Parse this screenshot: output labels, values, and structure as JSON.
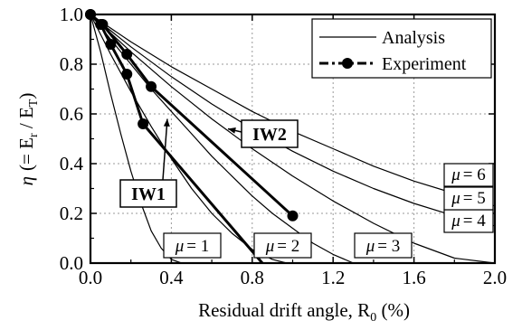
{
  "chart_data": {
    "type": "line",
    "xlabel": "Residual drift angle, R",
    "xlabel_sub": "0",
    "xlabel_unit": " (%)",
    "ylabel_eta": "η",
    "ylabel_open": "(= E",
    "ylabel_sub_r": "r",
    "ylabel_slash": " / E",
    "ylabel_sub_t": "T",
    "ylabel_close": ")",
    "xlim": [
      0.0,
      2.0
    ],
    "ylim": [
      0.0,
      1.0
    ],
    "x_ticks": [
      "0.0",
      "0.4",
      "0.8",
      "1.2",
      "1.6",
      "2.0"
    ],
    "y_ticks": [
      "0.0",
      "0.2",
      "0.4",
      "0.6",
      "0.8",
      "1.0"
    ],
    "grid": true,
    "legend": {
      "position": "top-right",
      "entries": [
        {
          "label": "Analysis",
          "style": "thin-line"
        },
        {
          "label": "Experiment",
          "style": "dash-dot-marker"
        }
      ]
    },
    "analysis_curves": [
      {
        "label": "μ = 1",
        "mu_symbol": "μ",
        "mu_value": "= 1",
        "x": [
          0.0,
          0.05,
          0.1,
          0.15,
          0.2,
          0.25,
          0.3,
          0.35,
          0.4,
          0.45
        ],
        "y": [
          1.0,
          0.85,
          0.68,
          0.52,
          0.37,
          0.24,
          0.13,
          0.06,
          0.015,
          0.0
        ]
      },
      {
        "label": "μ = 2",
        "mu_symbol": "μ",
        "mu_value": "= 2",
        "x": [
          0.0,
          0.1,
          0.2,
          0.3,
          0.4,
          0.5,
          0.6,
          0.7,
          0.8,
          0.9,
          0.97
        ],
        "y": [
          1.0,
          0.84,
          0.69,
          0.55,
          0.42,
          0.3,
          0.2,
          0.12,
          0.055,
          0.015,
          0.0
        ]
      },
      {
        "label": "μ = 3",
        "mu_symbol": "μ",
        "mu_value": "= 3",
        "x": [
          0.0,
          0.1,
          0.2,
          0.3,
          0.4,
          0.5,
          0.6,
          0.7,
          0.8,
          0.9,
          1.0,
          1.1,
          1.2,
          1.3
        ],
        "y": [
          1.0,
          0.9,
          0.8,
          0.7,
          0.61,
          0.52,
          0.43,
          0.35,
          0.27,
          0.2,
          0.14,
          0.08,
          0.035,
          0.0
        ]
      },
      {
        "label": "μ = 4",
        "mu_symbol": "μ",
        "mu_value": "= 4",
        "x": [
          0.0,
          0.2,
          0.4,
          0.6,
          0.8,
          1.0,
          1.2,
          1.4,
          1.6,
          1.8,
          2.0
        ],
        "y": [
          1.0,
          0.85,
          0.71,
          0.58,
          0.46,
          0.35,
          0.25,
          0.16,
          0.08,
          0.02,
          0.0
        ]
      },
      {
        "label": "μ = 5",
        "mu_symbol": "μ",
        "mu_value": "= 5",
        "x": [
          0.0,
          0.2,
          0.4,
          0.6,
          0.8,
          1.0,
          1.2,
          1.4,
          1.6,
          1.8,
          2.0
        ],
        "y": [
          1.0,
          0.87,
          0.75,
          0.64,
          0.54,
          0.45,
          0.37,
          0.3,
          0.24,
          0.19,
          0.15
        ]
      },
      {
        "label": "μ = 6",
        "mu_symbol": "μ",
        "mu_value": "= 6",
        "x": [
          0.0,
          0.2,
          0.4,
          0.6,
          0.8,
          1.0,
          1.2,
          1.4,
          1.6,
          1.8,
          2.0
        ],
        "y": [
          1.0,
          0.89,
          0.79,
          0.7,
          0.61,
          0.53,
          0.46,
          0.39,
          0.33,
          0.28,
          0.23
        ]
      }
    ],
    "experiment_series": [
      {
        "name": "IW1",
        "x": [
          0.0,
          0.05,
          0.1,
          0.18,
          0.26
        ],
        "y": [
          1.0,
          0.96,
          0.88,
          0.76,
          0.56
        ],
        "extension": {
          "x": [
            0.26,
            0.85
          ],
          "y": [
            0.56,
            0.0
          ]
        }
      },
      {
        "name": "IW2",
        "x": [
          0.0,
          0.06,
          0.18,
          0.3,
          1.0
        ],
        "y": [
          1.0,
          0.96,
          0.84,
          0.71,
          0.19
        ]
      }
    ],
    "callouts": [
      {
        "text": "IW1",
        "target_x": 0.38,
        "target_y": 0.58
      },
      {
        "text": "IW2",
        "target_x": 0.68,
        "target_y": 0.54
      }
    ]
  }
}
